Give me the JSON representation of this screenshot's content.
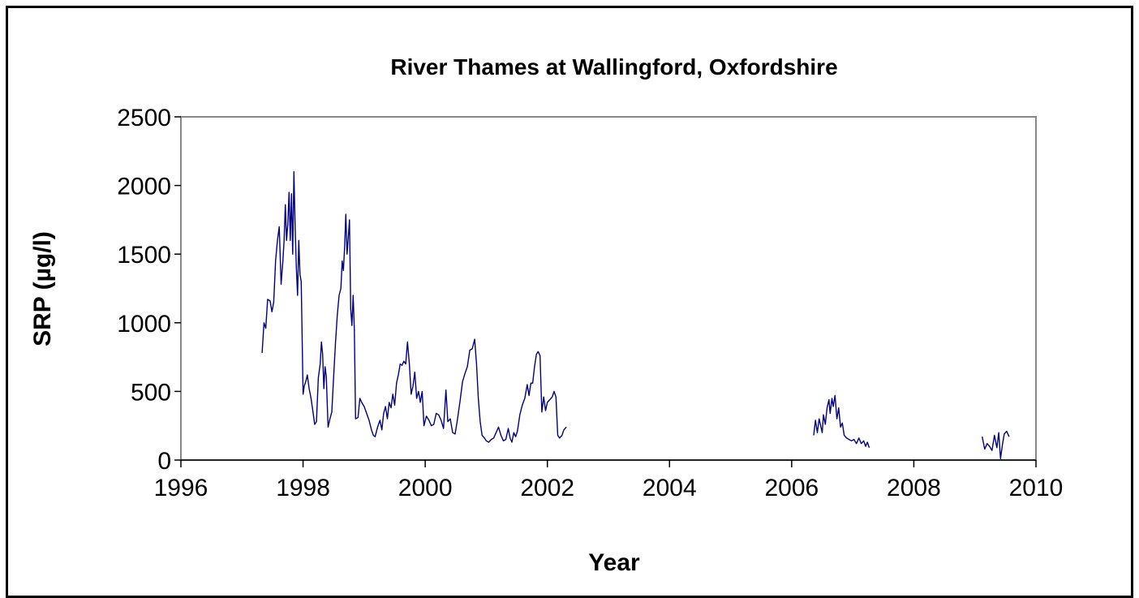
{
  "chart_data": {
    "type": "line",
    "title": "River Thames at Wallingford, Oxfordshire",
    "xlabel": "Year",
    "ylabel": "SRP (µg/l)",
    "xlim": [
      1996,
      2010
    ],
    "ylim": [
      0,
      2500
    ],
    "xticks": [
      1996,
      1998,
      2000,
      2002,
      2004,
      2006,
      2008,
      2010
    ],
    "yticks": [
      0,
      500,
      1000,
      1500,
      2000,
      2500
    ],
    "grid": false,
    "legend": "none",
    "line_color": "#000080",
    "series": [
      {
        "segments": [
          [
            [
              1997.33,
              780
            ],
            [
              1997.36,
              1000
            ],
            [
              1997.39,
              960
            ],
            [
              1997.42,
              1170
            ],
            [
              1997.46,
              1160
            ],
            [
              1997.49,
              1080
            ],
            [
              1997.52,
              1150
            ],
            [
              1997.55,
              1450
            ],
            [
              1997.58,
              1600
            ],
            [
              1997.61,
              1700
            ],
            [
              1997.64,
              1280
            ],
            [
              1997.67,
              1450
            ],
            [
              1997.69,
              1600
            ],
            [
              1997.71,
              1860
            ],
            [
              1997.73,
              1600
            ],
            [
              1997.75,
              1720
            ],
            [
              1997.77,
              1950
            ],
            [
              1997.79,
              1600
            ],
            [
              1997.81,
              1940
            ],
            [
              1997.83,
              1500
            ],
            [
              1997.85,
              2100
            ],
            [
              1997.87,
              1700
            ],
            [
              1997.89,
              1400
            ],
            [
              1997.91,
              1200
            ],
            [
              1997.93,
              1600
            ],
            [
              1997.95,
              1350
            ],
            [
              1997.97,
              1300
            ],
            [
              1998.0,
              480
            ],
            [
              1998.02,
              540
            ],
            [
              1998.05,
              580
            ],
            [
              1998.07,
              620
            ],
            [
              1998.1,
              520
            ],
            [
              1998.13,
              450
            ],
            [
              1998.16,
              360
            ],
            [
              1998.19,
              260
            ],
            [
              1998.22,
              280
            ],
            [
              1998.25,
              600
            ],
            [
              1998.28,
              700
            ],
            [
              1998.3,
              860
            ],
            [
              1998.32,
              770
            ],
            [
              1998.34,
              520
            ],
            [
              1998.36,
              680
            ],
            [
              1998.38,
              610
            ],
            [
              1998.41,
              240
            ],
            [
              1998.44,
              300
            ],
            [
              1998.47,
              350
            ],
            [
              1998.5,
              600
            ],
            [
              1998.53,
              850
            ],
            [
              1998.56,
              1050
            ],
            [
              1998.59,
              1200
            ],
            [
              1998.62,
              1250
            ],
            [
              1998.64,
              1450
            ],
            [
              1998.66,
              1380
            ],
            [
              1998.68,
              1550
            ],
            [
              1998.7,
              1790
            ],
            [
              1998.72,
              1500
            ],
            [
              1998.74,
              1620
            ],
            [
              1998.76,
              1750
            ],
            [
              1998.78,
              1100
            ],
            [
              1998.8,
              980
            ],
            [
              1998.82,
              1200
            ],
            [
              1998.84,
              950
            ],
            [
              1998.86,
              300
            ],
            [
              1998.9,
              310
            ],
            [
              1998.93,
              450
            ],
            [
              1998.96,
              420
            ],
            [
              1999.0,
              390
            ],
            [
              1999.04,
              340
            ],
            [
              1999.08,
              290
            ],
            [
              1999.12,
              220
            ],
            [
              1999.15,
              180
            ],
            [
              1999.18,
              170
            ],
            [
              1999.22,
              240
            ],
            [
              1999.26,
              290
            ],
            [
              1999.29,
              220
            ],
            [
              1999.32,
              340
            ],
            [
              1999.35,
              390
            ],
            [
              1999.38,
              300
            ],
            [
              1999.41,
              420
            ],
            [
              1999.44,
              380
            ],
            [
              1999.47,
              480
            ],
            [
              1999.5,
              400
            ],
            [
              1999.53,
              560
            ],
            [
              1999.56,
              620
            ],
            [
              1999.59,
              700
            ],
            [
              1999.62,
              690
            ],
            [
              1999.65,
              720
            ],
            [
              1999.68,
              700
            ],
            [
              1999.71,
              860
            ],
            [
              1999.74,
              700
            ],
            [
              1999.77,
              480
            ],
            [
              1999.8,
              540
            ],
            [
              1999.83,
              640
            ],
            [
              1999.86,
              450
            ],
            [
              1999.89,
              500
            ],
            [
              1999.92,
              420
            ],
            [
              1999.95,
              500
            ],
            [
              1999.98,
              250
            ],
            [
              2000.02,
              320
            ],
            [
              2000.06,
              290
            ],
            [
              2000.1,
              250
            ],
            [
              2000.14,
              260
            ],
            [
              2000.18,
              340
            ],
            [
              2000.22,
              330
            ],
            [
              2000.26,
              290
            ],
            [
              2000.3,
              230
            ],
            [
              2000.34,
              510
            ],
            [
              2000.37,
              280
            ],
            [
              2000.41,
              300
            ],
            [
              2000.45,
              200
            ],
            [
              2000.49,
              190
            ],
            [
              2000.53,
              300
            ],
            [
              2000.57,
              430
            ],
            [
              2000.61,
              570
            ],
            [
              2000.65,
              630
            ],
            [
              2000.69,
              680
            ],
            [
              2000.73,
              800
            ],
            [
              2000.77,
              810
            ],
            [
              2000.81,
              880
            ],
            [
              2000.84,
              700
            ],
            [
              2000.87,
              450
            ],
            [
              2000.9,
              280
            ],
            [
              2000.93,
              180
            ],
            [
              2000.97,
              160
            ],
            [
              2001.0,
              140
            ],
            [
              2001.04,
              130
            ],
            [
              2001.08,
              150
            ],
            [
              2001.12,
              160
            ],
            [
              2001.16,
              200
            ],
            [
              2001.2,
              240
            ],
            [
              2001.24,
              180
            ],
            [
              2001.28,
              140
            ],
            [
              2001.32,
              150
            ],
            [
              2001.36,
              230
            ],
            [
              2001.39,
              160
            ],
            [
              2001.42,
              130
            ],
            [
              2001.45,
              200
            ],
            [
              2001.48,
              170
            ],
            [
              2001.51,
              210
            ],
            [
              2001.55,
              330
            ],
            [
              2001.59,
              400
            ],
            [
              2001.63,
              450
            ],
            [
              2001.67,
              550
            ],
            [
              2001.7,
              470
            ],
            [
              2001.73,
              560
            ],
            [
              2001.76,
              560
            ],
            [
              2001.79,
              680
            ],
            [
              2001.82,
              770
            ],
            [
              2001.85,
              790
            ],
            [
              2001.88,
              760
            ],
            [
              2001.91,
              350
            ],
            [
              2001.94,
              460
            ],
            [
              2001.97,
              360
            ],
            [
              2002.0,
              420
            ],
            [
              2002.04,
              440
            ],
            [
              2002.08,
              460
            ],
            [
              2002.11,
              500
            ],
            [
              2002.14,
              460
            ],
            [
              2002.17,
              180
            ],
            [
              2002.2,
              160
            ],
            [
              2002.24,
              180
            ],
            [
              2002.27,
              220
            ],
            [
              2002.31,
              240
            ]
          ],
          [
            [
              2006.36,
              180
            ],
            [
              2006.39,
              290
            ],
            [
              2006.42,
              200
            ],
            [
              2006.45,
              300
            ],
            [
              2006.48,
              240
            ],
            [
              2006.5,
              200
            ],
            [
              2006.52,
              330
            ],
            [
              2006.55,
              260
            ],
            [
              2006.58,
              380
            ],
            [
              2006.61,
              440
            ],
            [
              2006.63,
              340
            ],
            [
              2006.66,
              450
            ],
            [
              2006.68,
              390
            ],
            [
              2006.71,
              470
            ],
            [
              2006.74,
              300
            ],
            [
              2006.77,
              380
            ],
            [
              2006.8,
              240
            ],
            [
              2006.83,
              270
            ],
            [
              2006.86,
              180
            ],
            [
              2006.9,
              160
            ],
            [
              2006.94,
              150
            ],
            [
              2006.98,
              140
            ],
            [
              2007.02,
              150
            ],
            [
              2007.06,
              120
            ],
            [
              2007.1,
              160
            ],
            [
              2007.14,
              120
            ],
            [
              2007.18,
              140
            ],
            [
              2007.21,
              100
            ],
            [
              2007.24,
              130
            ],
            [
              2007.27,
              90
            ]
          ],
          [
            [
              2009.12,
              170
            ],
            [
              2009.16,
              80
            ],
            [
              2009.2,
              120
            ],
            [
              2009.24,
              100
            ],
            [
              2009.28,
              70
            ],
            [
              2009.32,
              180
            ],
            [
              2009.36,
              90
            ],
            [
              2009.39,
              200
            ],
            [
              2009.42,
              10
            ],
            [
              2009.45,
              110
            ],
            [
              2009.48,
              190
            ],
            [
              2009.52,
              210
            ],
            [
              2009.56,
              170
            ]
          ]
        ]
      }
    ]
  }
}
